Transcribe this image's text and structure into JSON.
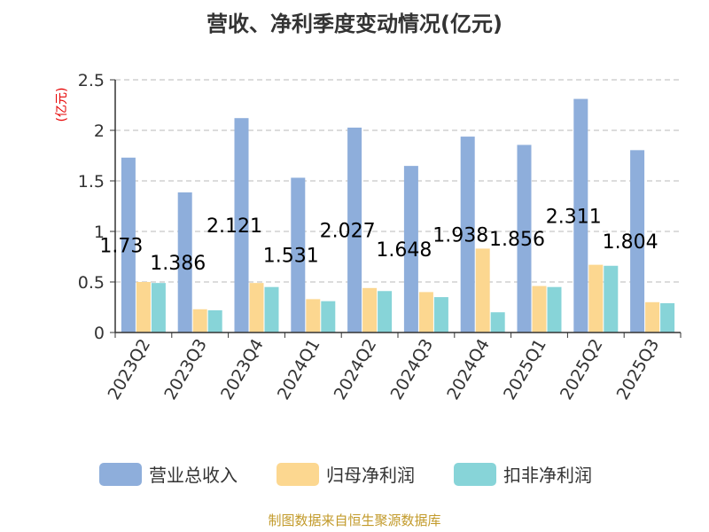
{
  "chart_data": {
    "type": "bar",
    "title": "营收、净利季度变动情况(亿元)",
    "ylabel": "(亿元)",
    "xlabel": "",
    "ylim": [
      0,
      2.5
    ],
    "yticks": [
      "0",
      "0.5",
      "1",
      "1.5",
      "2",
      "2.5"
    ],
    "grid": true,
    "legend_position": "bottom",
    "categories": [
      "2023Q2",
      "2023Q3",
      "2023Q4",
      "2024Q1",
      "2024Q2",
      "2024Q3",
      "2024Q4",
      "2025Q1",
      "2025Q2",
      "2025Q3"
    ],
    "series": [
      {
        "name": "营业总收入",
        "color": "#8eaedb",
        "values": [
          1.73,
          1.386,
          2.121,
          1.531,
          2.027,
          1.648,
          1.938,
          1.856,
          2.311,
          1.804
        ],
        "labels": [
          "1.73",
          "1.386",
          "2.121",
          "1.531",
          "2.027",
          "1.648",
          "1.938",
          "1.856",
          "2.311",
          "1.804"
        ]
      },
      {
        "name": "归母净利润",
        "color": "#fcd790",
        "values": [
          0.5,
          0.23,
          0.49,
          0.33,
          0.44,
          0.4,
          0.83,
          0.46,
          0.67,
          0.3
        ]
      },
      {
        "name": "扣非净利润",
        "color": "#87d4d8",
        "values": [
          0.49,
          0.22,
          0.45,
          0.31,
          0.41,
          0.35,
          0.2,
          0.45,
          0.66,
          0.29
        ]
      }
    ]
  },
  "footer": "制图数据来自恒生聚源数据库"
}
